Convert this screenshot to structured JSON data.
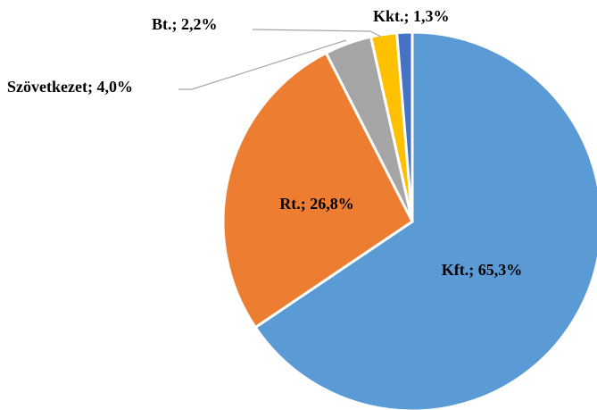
{
  "chart_data": {
    "type": "pie",
    "categories": [
      "Kft.",
      "Rt.",
      "Szövetkezet",
      "Bt.",
      "Kkt."
    ],
    "values": [
      65.3,
      26.8,
      4.0,
      2.2,
      1.3
    ],
    "value_labels": [
      "Kft.; 65,3%",
      "Rt.; 26,8%",
      "Szövetkezet; 4,0%",
      "Bt.; 2,2%",
      "Kkt.; 1,3%"
    ],
    "colors": [
      "#5b9bd5",
      "#ed7d31",
      "#a5a5a5",
      "#ffc000",
      "#4472c4"
    ]
  }
}
